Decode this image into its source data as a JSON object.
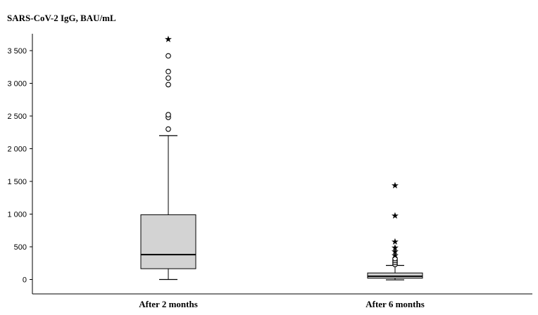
{
  "chart_data": {
    "type": "box",
    "ylabel": "SARS-CoV-2 IgG, BAU/mL",
    "xlabel": "",
    "ylim": [
      -200,
      3850
    ],
    "y_ticks": [
      0,
      500,
      1000,
      1500,
      2000,
      2500,
      3000,
      3500
    ],
    "y_tick_labels": [
      "0",
      "500",
      "1 000",
      "1 500",
      "2 000",
      "2 500",
      "3 000",
      "3 500"
    ],
    "grid": false,
    "categories": [
      "After 2 months",
      "After 6 months"
    ],
    "colors": {
      "box_fill": "#d3d3d3",
      "line": "#000000",
      "background": "#ffffff"
    },
    "boxes": [
      {
        "category": "After 2 months",
        "whisker_low": 0,
        "q1": 165,
        "median": 380,
        "q3": 990,
        "whisker_high": 2200,
        "outliers": [
          2300,
          2480,
          2520,
          2980,
          3080,
          3180,
          3420
        ],
        "extremes": [
          3680
        ]
      },
      {
        "category": "After 6 months",
        "whisker_low": -5,
        "q1": 20,
        "median": 50,
        "q3": 100,
        "whisker_high": 215,
        "outliers": [
          230,
          260,
          290,
          320
        ],
        "extremes": [
          370,
          430,
          490,
          580,
          980,
          1440
        ]
      }
    ]
  }
}
